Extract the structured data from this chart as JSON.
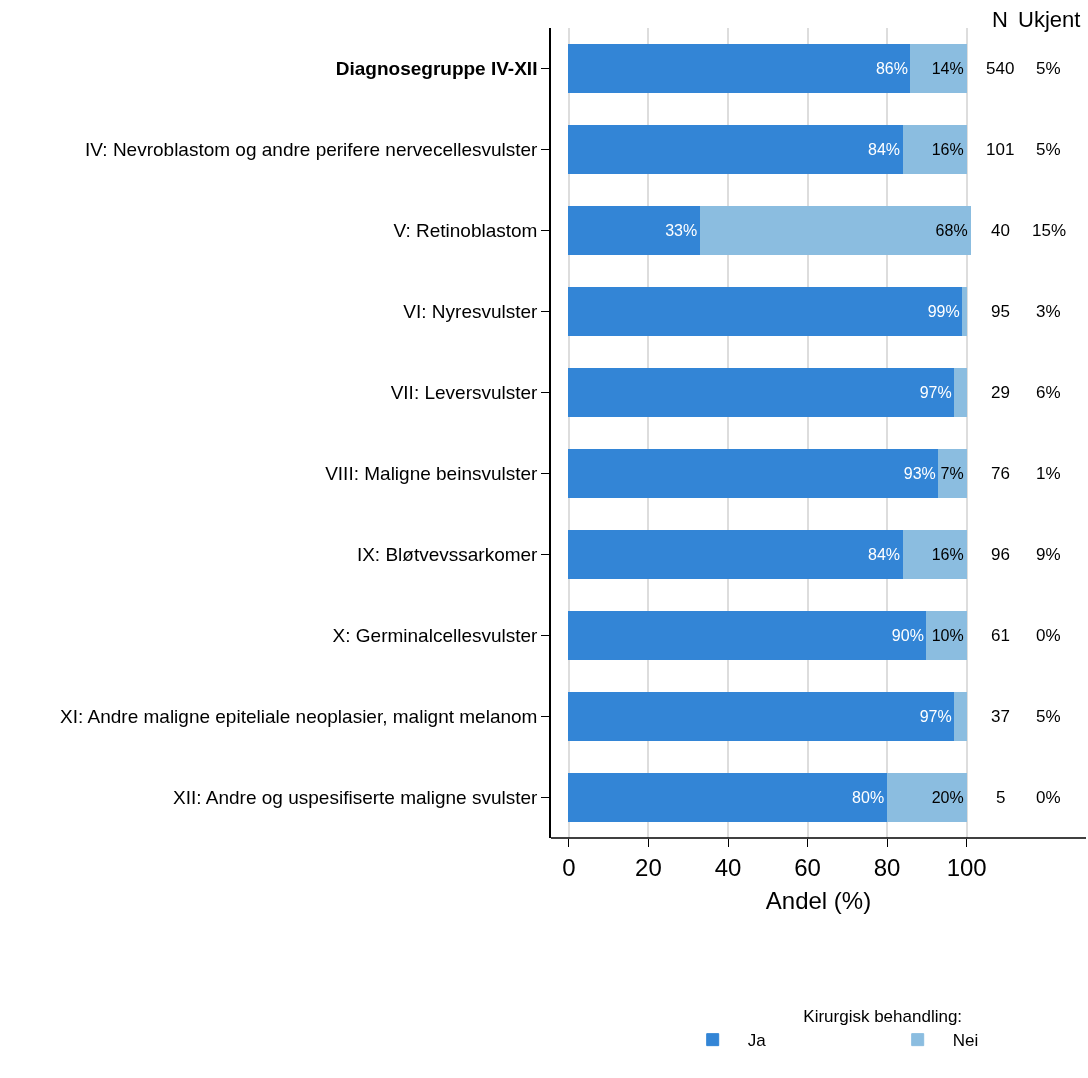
{
  "chart_data": {
    "type": "bar",
    "orientation": "horizontal",
    "stacked": true,
    "categories": [
      "Diagnosegruppe IV-XII",
      "IV: Nevroblastom og andre perifere nervecellesvulster",
      "V: Retinoblastom",
      "VI: Nyresvulster",
      "VII: Leversvulster",
      "VIII: Maligne beinsvulster",
      "IX: Bløtvevssarkomer",
      "X: Germinalcellesvulster",
      "XI: Andre maligne epiteliale neoplasier, malignt melanom",
      "XII: Andre og uspesifiserte maligne svulster"
    ],
    "series": [
      {
        "name": "Ja",
        "color": "#3385d6",
        "values": [
          86,
          84,
          33,
          99,
          97,
          93,
          84,
          90,
          97,
          80
        ],
        "value_labels": [
          "86%",
          "84%",
          "33%",
          "99%",
          "97%",
          "93%",
          "84%",
          "90%",
          "97%",
          "80%"
        ]
      },
      {
        "name": "Nei",
        "color": "#8bbde0",
        "values": [
          14,
          16,
          68,
          1,
          3,
          7,
          16,
          10,
          3,
          20
        ],
        "value_labels": [
          "14%",
          "16%",
          "68%",
          null,
          null,
          "7%",
          "16%",
          "10%",
          null,
          "20%"
        ]
      }
    ],
    "xlabel": "Andel (%)",
    "legend_title": "Kirurgisk behandling:",
    "legend": "bottom",
    "grid": "x",
    "xlim": [
      -4.5,
      130
    ],
    "xticks": [
      0,
      20,
      40,
      60,
      80,
      100
    ],
    "annotations": [
      "N",
      "Ukjent",
      "540",
      "5%",
      "101",
      "5%",
      "40",
      "15%",
      "95",
      "3%",
      "29",
      "6%",
      "76",
      "1%",
      "96",
      "9%",
      "61",
      "0%",
      "37",
      "5%",
      "5",
      "0%"
    ]
  }
}
